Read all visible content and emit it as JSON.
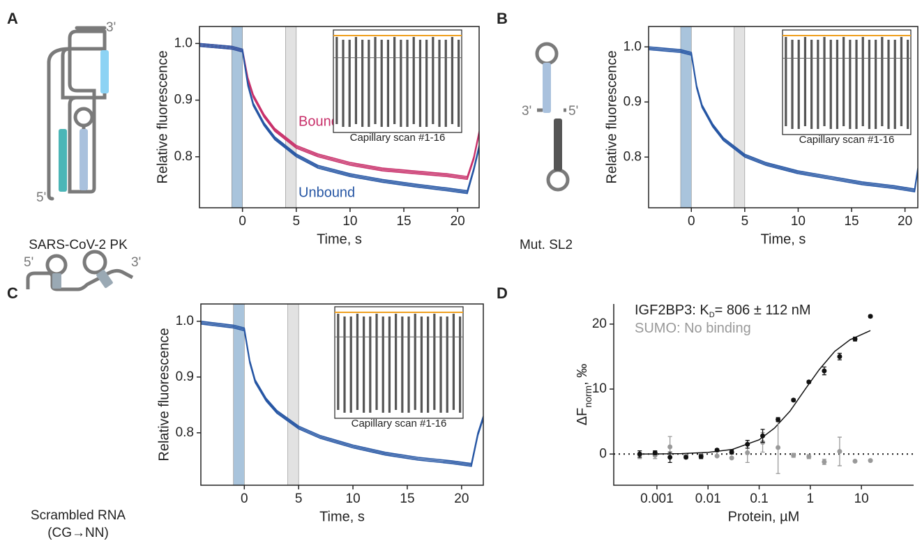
{
  "panels": [
    {
      "letter": "A",
      "caption": "SARS-CoV-2 PK",
      "ends": [
        "3'",
        "5'"
      ]
    },
    {
      "letter": "B",
      "caption": "Mut. SL2",
      "ends": [
        "3'",
        "5'"
      ]
    },
    {
      "letter": "C",
      "caption": "Scrambled RNA",
      "caption2": "(CG→NN)",
      "ends": [
        "5'",
        "3'"
      ]
    },
    {
      "letter": "D"
    }
  ],
  "chart_data": [
    {
      "type": "line",
      "xlabel": "Time, s",
      "ylabel": "Relative fluorescence",
      "xlim": [
        -4,
        22
      ],
      "ylim": [
        0.71,
        1.03
      ],
      "xticks": [
        0,
        5,
        10,
        15,
        20
      ],
      "yticks": [
        0.8,
        0.9,
        {
          "value": 1,
          "label": "1.0"
        }
      ],
      "regions": [
        {
          "xlim": [
            -1,
            0
          ],
          "color": "#a9c4dc"
        },
        {
          "xlim": [
            4,
            5
          ],
          "color": "#e2e2e2"
        }
      ],
      "inset": {
        "label": "Capillary scan #1-16"
      },
      "x": [
        -4,
        -1,
        0,
        0.5,
        1,
        2,
        3,
        5,
        7,
        10,
        13,
        16,
        19,
        20.9,
        21.5,
        22
      ],
      "series": [
        {
          "name": "Bound",
          "color": "#c8306a",
          "values": [
            1.0,
            0.995,
            0.99,
            0.94,
            0.91,
            0.875,
            0.85,
            0.82,
            0.805,
            0.79,
            0.78,
            0.775,
            0.77,
            0.765,
            0.8,
            0.845
          ]
        },
        {
          "name": "Unbound",
          "color": "#2656a4",
          "values": [
            1.0,
            0.995,
            0.99,
            0.93,
            0.895,
            0.86,
            0.835,
            0.805,
            0.785,
            0.77,
            0.76,
            0.752,
            0.745,
            0.74,
            0.78,
            0.82
          ]
        }
      ]
    },
    {
      "type": "line",
      "xlabel": "Time, s",
      "ylabel": "Relative fluorescence",
      "xlim": [
        -4,
        21.2
      ],
      "ylim": [
        0.708,
        1.037
      ],
      "xticks": [
        0,
        5,
        10,
        15,
        20
      ],
      "yticks": [
        0.8,
        0.9,
        {
          "value": 1,
          "label": "1.0"
        }
      ],
      "regions": [
        {
          "xlim": [
            -1,
            0
          ],
          "color": "#a9c4dc"
        },
        {
          "xlim": [
            4,
            5
          ],
          "color": "#e2e2e2"
        }
      ],
      "inset": {
        "label": "Capillary scan #1-16"
      },
      "x": [
        -4,
        -1,
        0,
        0.5,
        1,
        2,
        3,
        5,
        7,
        10,
        13,
        16,
        19,
        20.9,
        21.2
      ],
      "series": [
        {
          "color": "#2656a4",
          "values": [
            1.0,
            0.995,
            0.99,
            0.93,
            0.895,
            0.86,
            0.835,
            0.805,
            0.79,
            0.775,
            0.765,
            0.755,
            0.748,
            0.742,
            0.78
          ]
        }
      ]
    },
    {
      "type": "line",
      "xlabel": "Time, s",
      "ylabel": "Relative fluorescence",
      "xlim": [
        -4,
        22
      ],
      "ylim": [
        0.706,
        1.031
      ],
      "xticks": [
        0,
        5,
        10,
        15,
        20
      ],
      "yticks": [
        0.8,
        0.9,
        {
          "value": 1,
          "label": "1.0"
        }
      ],
      "regions": [
        {
          "xlim": [
            -1,
            0
          ],
          "color": "#a9c4dc"
        },
        {
          "xlim": [
            4,
            5
          ],
          "color": "#e2e2e2"
        }
      ],
      "inset": {
        "label": "Capillary scan #1-16"
      },
      "x": [
        -4,
        -1,
        0,
        0.5,
        1,
        2,
        3,
        5,
        7,
        10,
        13,
        16,
        19,
        20.9,
        21.5,
        22
      ],
      "series": [
        {
          "color": "#2656a4",
          "values": [
            1.0,
            0.993,
            0.988,
            0.93,
            0.895,
            0.862,
            0.84,
            0.812,
            0.795,
            0.778,
            0.765,
            0.756,
            0.75,
            0.745,
            0.8,
            0.83
          ]
        }
      ]
    },
    {
      "type": "scatter",
      "xlabel": "Protein, µM",
      "ylabel_parts": [
        "ΔF",
        "norm",
        ", ‰"
      ],
      "xscale": "log",
      "xlim": [
        0.000143,
        105
      ],
      "ylim": [
        -4.8,
        23.1
      ],
      "xticks": [
        0.001,
        0.01,
        0.1,
        1,
        10
      ],
      "yticks": [
        0,
        10,
        20
      ],
      "annotations": [
        {
          "parts": [
            "IGF2BP3: K",
            "D",
            "= 806 ± 112 nM"
          ],
          "color": "#222"
        },
        {
          "parts": [
            "SUMO: No binding"
          ],
          "color": "#999"
        }
      ],
      "x": [
        0.00046,
        0.00092,
        0.0018,
        0.0037,
        0.0073,
        0.015,
        0.029,
        0.059,
        0.117,
        0.234,
        0.469,
        0.938,
        1.875,
        3.75,
        7.5,
        15
      ],
      "series": [
        {
          "color": "#111",
          "values": [
            0,
            0.2,
            -0.5,
            -0.5,
            -0.4,
            0.6,
            0.3,
            1.5,
            2.8,
            5.3,
            8.3,
            11.1,
            12.8,
            15.0,
            17.7,
            21.2
          ],
          "errors": [
            0.5,
            0.3,
            0.8,
            0.2,
            0.3,
            0.2,
            0.3,
            0.6,
            1.0,
            0.3,
            0.2,
            0.2,
            0.6,
            0.5,
            0.3,
            0.2
          ]
        },
        {
          "color": "#999",
          "values": [
            -0.1,
            -0.2,
            1.1,
            -0.3,
            -0.2,
            -0.3,
            -0.6,
            0.2,
            1.8,
            1.0,
            -0.2,
            -0.4,
            -1.2,
            0.4,
            -1.1,
            -1.0
          ],
          "errors": [
            0.6,
            0.5,
            1.6,
            0,
            0,
            0,
            0,
            1.5,
            1.5,
            4.0,
            0.3,
            0.3,
            0.4,
            2.2,
            0,
            0
          ]
        }
      ],
      "fit": {
        "color": "#111",
        "x": [
          0.0005,
          0.001,
          0.003,
          0.01,
          0.03,
          0.1,
          0.2,
          0.4,
          0.8,
          1.5,
          3,
          6,
          15
        ],
        "values": [
          0.01,
          0.02,
          0.07,
          0.25,
          0.72,
          2.2,
          4.0,
          6.6,
          10.0,
          13.0,
          15.8,
          17.6,
          19.0
        ]
      }
    }
  ]
}
